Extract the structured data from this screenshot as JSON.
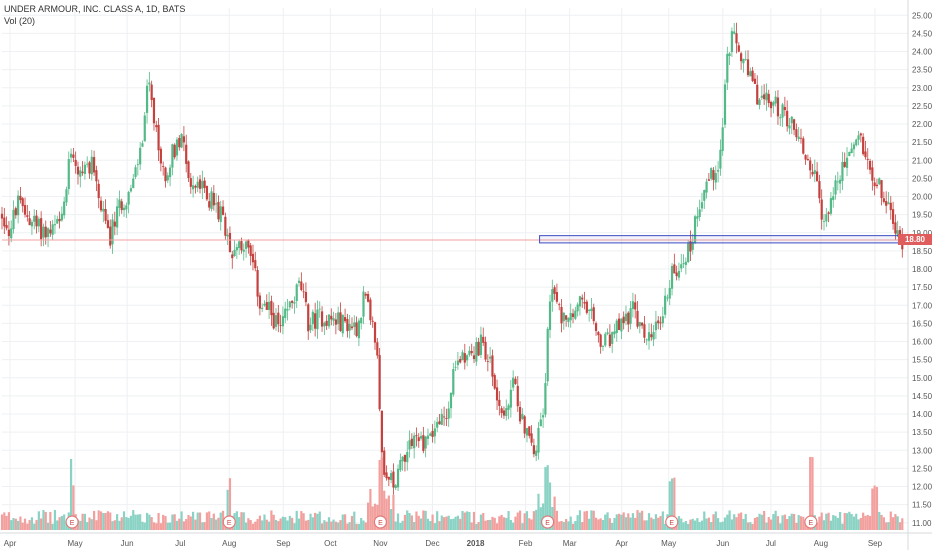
{
  "legend": {
    "symbol_line": "UNDER ARMOUR, INC. CLASS A, 1D, BATS",
    "volume_line": "Vol (20)"
  },
  "colors": {
    "up": "#53b987",
    "down": "#c4413e",
    "vol_up": "#8ad2c4",
    "vol_down": "#f2a09e",
    "grid": "#eef0f3",
    "ref_line": "#f0a0a0",
    "box": "#3b4cc0",
    "price_tag": "#e05d5d",
    "axis_text": "#555555"
  },
  "last_price_label": "18.80",
  "earnings_marker": "E",
  "chart_data": {
    "type": "candlestick",
    "title": "UNDER ARMOUR, INC. CLASS A, 1D, BATS",
    "ylim": [
      10.8,
      25.2
    ],
    "y_ticks": [
      "11.00",
      "11.50",
      "12.00",
      "12.50",
      "13.00",
      "13.50",
      "14.00",
      "14.50",
      "15.00",
      "15.50",
      "16.00",
      "16.50",
      "17.00",
      "17.50",
      "18.00",
      "18.50",
      "19.00",
      "19.50",
      "20.00",
      "20.50",
      "21.00",
      "21.50",
      "22.00",
      "22.50",
      "23.00",
      "23.50",
      "24.00",
      "24.50",
      "25.00"
    ],
    "x_labels": [
      "Apr",
      "May",
      "Jun",
      "Jul",
      "Aug",
      "Sep",
      "Oct",
      "Nov",
      "Dec",
      "2018",
      "Feb",
      "Mar",
      "Apr",
      "May",
      "Jun",
      "Jul",
      "Aug",
      "Sep"
    ],
    "x_label_days": [
      8,
      73,
      125,
      178,
      227,
      281,
      328,
      378,
      430,
      473,
      523,
      567,
      619,
      666,
      720,
      768,
      818,
      872
    ],
    "earnings_days": [
      70,
      227,
      378,
      545,
      669,
      808
    ],
    "reference_price": 18.8,
    "box_range": [
      18.72,
      18.92
    ],
    "box_start_day": 537,
    "price_path": [
      {
        "d": 0,
        "p": 19.5
      },
      {
        "d": 8,
        "p": 19.0
      },
      {
        "d": 15,
        "p": 19.8
      },
      {
        "d": 28,
        "p": 19.4
      },
      {
        "d": 38,
        "p": 19.1
      },
      {
        "d": 48,
        "p": 19.0
      },
      {
        "d": 60,
        "p": 19.3
      },
      {
        "d": 70,
        "p": 21.5
      },
      {
        "d": 78,
        "p": 20.5
      },
      {
        "d": 90,
        "p": 21.0
      },
      {
        "d": 100,
        "p": 19.5
      },
      {
        "d": 108,
        "p": 18.9
      },
      {
        "d": 118,
        "p": 19.8
      },
      {
        "d": 130,
        "p": 20.2
      },
      {
        "d": 140,
        "p": 21.5
      },
      {
        "d": 146,
        "p": 23.2
      },
      {
        "d": 153,
        "p": 21.8
      },
      {
        "d": 162,
        "p": 20.5
      },
      {
        "d": 170,
        "p": 21.2
      },
      {
        "d": 180,
        "p": 21.8
      },
      {
        "d": 188,
        "p": 20.3
      },
      {
        "d": 200,
        "p": 20.2
      },
      {
        "d": 212,
        "p": 19.8
      },
      {
        "d": 222,
        "p": 19.3
      },
      {
        "d": 230,
        "p": 18.5
      },
      {
        "d": 240,
        "p": 18.8
      },
      {
        "d": 250,
        "p": 18.2
      },
      {
        "d": 258,
        "p": 17.0
      },
      {
        "d": 268,
        "p": 16.8
      },
      {
        "d": 278,
        "p": 16.3
      },
      {
        "d": 288,
        "p": 17.0
      },
      {
        "d": 298,
        "p": 17.6
      },
      {
        "d": 306,
        "p": 16.5
      },
      {
        "d": 318,
        "p": 16.7
      },
      {
        "d": 330,
        "p": 16.6
      },
      {
        "d": 345,
        "p": 16.5
      },
      {
        "d": 355,
        "p": 16.4
      },
      {
        "d": 362,
        "p": 17.3
      },
      {
        "d": 368,
        "p": 16.6
      },
      {
        "d": 374,
        "p": 15.8
      },
      {
        "d": 378,
        "p": 13.8
      },
      {
        "d": 382,
        "p": 12.0
      },
      {
        "d": 392,
        "p": 12.2
      },
      {
        "d": 400,
        "p": 12.8
      },
      {
        "d": 410,
        "p": 13.4
      },
      {
        "d": 420,
        "p": 13.2
      },
      {
        "d": 432,
        "p": 13.6
      },
      {
        "d": 445,
        "p": 14.0
      },
      {
        "d": 452,
        "p": 15.2
      },
      {
        "d": 460,
        "p": 15.7
      },
      {
        "d": 470,
        "p": 15.6
      },
      {
        "d": 480,
        "p": 16.0
      },
      {
        "d": 488,
        "p": 15.3
      },
      {
        "d": 496,
        "p": 14.3
      },
      {
        "d": 503,
        "p": 13.8
      },
      {
        "d": 510,
        "p": 14.9
      },
      {
        "d": 518,
        "p": 14.0
      },
      {
        "d": 526,
        "p": 13.4
      },
      {
        "d": 532,
        "p": 12.8
      },
      {
        "d": 537,
        "p": 13.8
      },
      {
        "d": 541,
        "p": 14.3
      },
      {
        "d": 546,
        "p": 16.5
      },
      {
        "d": 550,
        "p": 17.8
      },
      {
        "d": 556,
        "p": 16.9
      },
      {
        "d": 566,
        "p": 16.4
      },
      {
        "d": 576,
        "p": 17.1
      },
      {
        "d": 588,
        "p": 16.7
      },
      {
        "d": 598,
        "p": 15.9
      },
      {
        "d": 606,
        "p": 16.0
      },
      {
        "d": 614,
        "p": 16.3
      },
      {
        "d": 622,
        "p": 16.6
      },
      {
        "d": 630,
        "p": 16.9
      },
      {
        "d": 640,
        "p": 16.2
      },
      {
        "d": 650,
        "p": 16.1
      },
      {
        "d": 660,
        "p": 16.8
      },
      {
        "d": 668,
        "p": 17.8
      },
      {
        "d": 678,
        "p": 18.2
      },
      {
        "d": 688,
        "p": 18.6
      },
      {
        "d": 694,
        "p": 19.6
      },
      {
        "d": 702,
        "p": 20.3
      },
      {
        "d": 710,
        "p": 20.6
      },
      {
        "d": 718,
        "p": 21.2
      },
      {
        "d": 724,
        "p": 23.8
      },
      {
        "d": 730,
        "p": 24.4
      },
      {
        "d": 738,
        "p": 23.9
      },
      {
        "d": 746,
        "p": 23.3
      },
      {
        "d": 754,
        "p": 22.8
      },
      {
        "d": 764,
        "p": 22.6
      },
      {
        "d": 774,
        "p": 22.5
      },
      {
        "d": 784,
        "p": 22.2
      },
      {
        "d": 794,
        "p": 21.8
      },
      {
        "d": 804,
        "p": 21.0
      },
      {
        "d": 812,
        "p": 20.6
      },
      {
        "d": 820,
        "p": 19.1
      },
      {
        "d": 826,
        "p": 19.8
      },
      {
        "d": 836,
        "p": 20.5
      },
      {
        "d": 846,
        "p": 21.2
      },
      {
        "d": 856,
        "p": 21.7
      },
      {
        "d": 864,
        "p": 21.1
      },
      {
        "d": 872,
        "p": 20.5
      },
      {
        "d": 880,
        "p": 20.0
      },
      {
        "d": 888,
        "p": 19.5
      },
      {
        "d": 894,
        "p": 18.9
      },
      {
        "d": 900,
        "p": 18.8
      }
    ],
    "volume_spike_days": [
      70,
      227,
      378,
      545,
      669,
      808,
      872
    ]
  }
}
